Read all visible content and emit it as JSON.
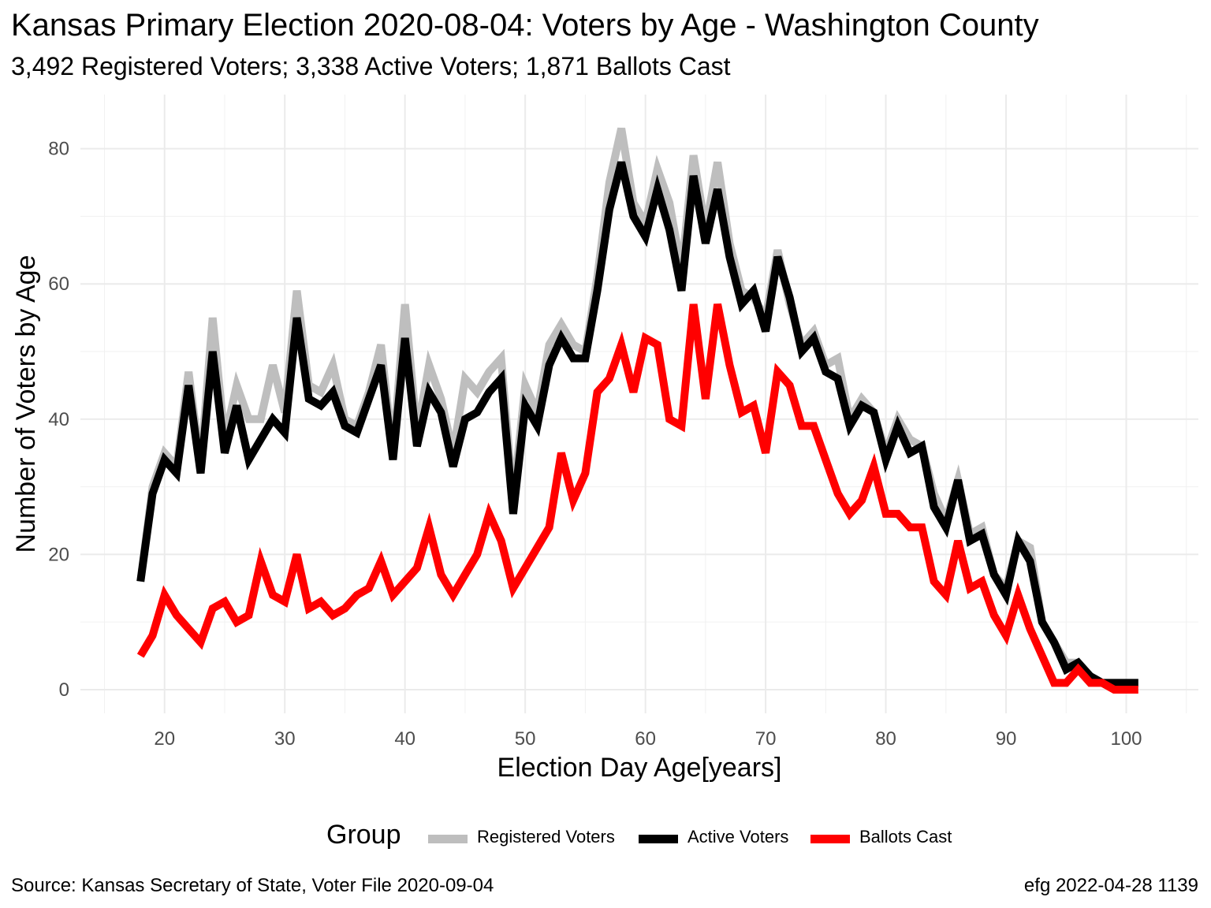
{
  "title": "Kansas Primary Election 2020-08-04:  Voters by Age - Washington County",
  "subtitle": "3,492 Registered Voters; 3,338 Active Voters; 1,871 Ballots Cast",
  "source": "Source:  Kansas Secretary of State, Voter File  2020-09-04",
  "credit": "efg 2022-04-28 1139",
  "legend": {
    "title": "Group",
    "items": [
      {
        "label": "Registered Voters",
        "color": "#bebebe"
      },
      {
        "label": "Active Voters",
        "color": "#000000"
      },
      {
        "label": "Ballots Cast",
        "color": "#ff0000"
      }
    ]
  },
  "chart_data": {
    "type": "line",
    "xlabel": "Election Day Age[years]",
    "ylabel": "Number of Voters by Age",
    "xlim": [
      13,
      106
    ],
    "ylim": [
      -3.5,
      88
    ],
    "xticks": [
      20,
      30,
      40,
      50,
      60,
      70,
      80,
      90,
      100
    ],
    "yticks": [
      0,
      20,
      40,
      60,
      80
    ],
    "grid": true,
    "legend_position": "bottom",
    "x": [
      18,
      19,
      20,
      21,
      22,
      23,
      24,
      25,
      26,
      27,
      28,
      29,
      30,
      31,
      32,
      33,
      34,
      35,
      36,
      37,
      38,
      39,
      40,
      41,
      42,
      43,
      44,
      45,
      46,
      47,
      48,
      49,
      50,
      51,
      52,
      53,
      54,
      55,
      56,
      57,
      58,
      59,
      60,
      61,
      62,
      63,
      64,
      65,
      66,
      67,
      68,
      69,
      70,
      71,
      72,
      73,
      74,
      75,
      76,
      77,
      78,
      79,
      80,
      81,
      82,
      83,
      84,
      85,
      86,
      87,
      88,
      89,
      90,
      91,
      92,
      93,
      94,
      95,
      96,
      97,
      98,
      99,
      100,
      101
    ],
    "series": [
      {
        "name": "Registered Voters",
        "color": "#bebebe",
        "values": [
          16,
          30,
          35,
          33,
          47,
          33,
          55,
          37,
          45,
          40,
          40,
          48,
          41,
          59,
          45,
          44,
          48,
          40,
          39,
          44,
          51,
          35,
          57,
          38,
          48,
          43,
          35,
          46,
          44,
          47,
          49,
          28,
          45,
          41,
          51,
          54,
          51,
          50,
          61,
          75,
          83,
          72,
          69,
          77,
          72,
          62,
          79,
          68,
          78,
          66,
          59,
          58,
          55,
          65,
          57,
          51,
          53,
          48,
          49,
          40,
          43,
          41,
          35,
          40,
          37,
          36,
          29,
          25,
          31,
          23,
          24,
          17,
          15,
          22,
          21,
          10,
          7,
          4,
          4,
          2,
          1,
          1,
          1,
          1
        ]
      },
      {
        "name": "Active Voters",
        "color": "#000000",
        "values": [
          16,
          29,
          34,
          32,
          45,
          32,
          50,
          35,
          42,
          34,
          37,
          40,
          38,
          55,
          43,
          42,
          44,
          39,
          38,
          43,
          48,
          34,
          52,
          36,
          44,
          41,
          33,
          40,
          41,
          44,
          46,
          26,
          42,
          39,
          48,
          52,
          49,
          49,
          59,
          71,
          78,
          70,
          67,
          74,
          68,
          59,
          76,
          66,
          74,
          64,
          57,
          59,
          53,
          64,
          58,
          50,
          52,
          47,
          46,
          39,
          42,
          41,
          34,
          39,
          35,
          36,
          27,
          24,
          31,
          22,
          23,
          17,
          14,
          22,
          19,
          10,
          7,
          3,
          4,
          2,
          1,
          1,
          1,
          1
        ]
      },
      {
        "name": "Ballots Cast",
        "color": "#ff0000",
        "values": [
          5,
          8,
          14,
          11,
          9,
          7,
          12,
          13,
          10,
          11,
          19,
          14,
          13,
          20,
          12,
          13,
          11,
          12,
          14,
          15,
          19,
          14,
          16,
          18,
          24,
          17,
          14,
          17,
          20,
          26,
          22,
          15,
          18,
          21,
          24,
          35,
          28,
          32,
          44,
          46,
          51,
          44,
          52,
          51,
          40,
          39,
          57,
          43,
          57,
          48,
          41,
          42,
          35,
          47,
          45,
          39,
          39,
          34,
          29,
          26,
          28,
          33,
          26,
          26,
          24,
          24,
          16,
          14,
          22,
          15,
          16,
          11,
          8,
          14,
          9,
          5,
          1,
          1,
          3,
          1,
          1,
          0,
          0,
          0
        ]
      }
    ]
  }
}
